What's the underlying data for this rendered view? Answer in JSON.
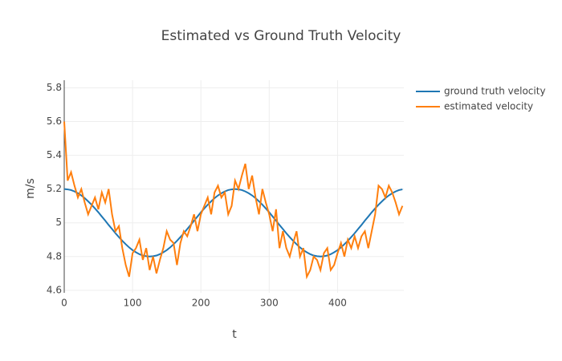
{
  "chart_data": {
    "type": "line",
    "title": "Estimated vs Ground Truth Velocity",
    "x_label": "t",
    "y_label": "m/s",
    "x": [
      0,
      5,
      10,
      15,
      20,
      25,
      30,
      35,
      40,
      45,
      50,
      55,
      60,
      65,
      70,
      75,
      80,
      85,
      90,
      95,
      100,
      105,
      110,
      115,
      120,
      125,
      130,
      135,
      140,
      145,
      150,
      155,
      160,
      165,
      170,
      175,
      180,
      185,
      190,
      195,
      200,
      205,
      210,
      215,
      220,
      225,
      230,
      235,
      240,
      245,
      250,
      255,
      260,
      265,
      270,
      275,
      280,
      285,
      290,
      295,
      300,
      305,
      310,
      315,
      320,
      325,
      330,
      335,
      340,
      345,
      350,
      355,
      360,
      365,
      370,
      375,
      380,
      385,
      390,
      395,
      400,
      405,
      410,
      415,
      420,
      425,
      430,
      435,
      440,
      445,
      450,
      455,
      460,
      465,
      470,
      475,
      480,
      485,
      490,
      495
    ],
    "series": [
      {
        "name": "ground truth velocity",
        "color": "#1f77b4",
        "values": [
          5.2,
          5.198,
          5.194,
          5.186,
          5.175,
          5.162,
          5.146,
          5.127,
          5.107,
          5.085,
          5.062,
          5.037,
          5.013,
          4.987,
          4.963,
          4.938,
          4.915,
          4.893,
          4.873,
          4.854,
          4.838,
          4.825,
          4.814,
          4.806,
          4.802,
          4.8,
          4.802,
          4.806,
          4.814,
          4.825,
          4.838,
          4.854,
          4.873,
          4.893,
          4.915,
          4.938,
          4.963,
          4.987,
          5.013,
          5.037,
          5.062,
          5.085,
          5.107,
          5.127,
          5.146,
          5.162,
          5.175,
          5.186,
          5.194,
          5.198,
          5.2,
          5.198,
          5.194,
          5.186,
          5.175,
          5.162,
          5.146,
          5.127,
          5.107,
          5.085,
          5.062,
          5.037,
          5.013,
          4.987,
          4.963,
          4.938,
          4.915,
          4.893,
          4.873,
          4.854,
          4.838,
          4.825,
          4.814,
          4.806,
          4.802,
          4.8,
          4.802,
          4.806,
          4.814,
          4.825,
          4.838,
          4.854,
          4.873,
          4.893,
          4.915,
          4.938,
          4.963,
          4.987,
          5.013,
          5.037,
          5.062,
          5.085,
          5.107,
          5.127,
          5.146,
          5.162,
          5.175,
          5.186,
          5.194,
          5.198
        ]
      },
      {
        "name": "estimated velocity",
        "color": "#ff7f0e",
        "values": [
          5.6,
          5.25,
          5.3,
          5.22,
          5.15,
          5.2,
          5.12,
          5.05,
          5.1,
          5.15,
          5.08,
          5.18,
          5.12,
          5.2,
          5.05,
          4.95,
          4.98,
          4.85,
          4.75,
          4.68,
          4.82,
          4.85,
          4.9,
          4.78,
          4.85,
          4.72,
          4.8,
          4.7,
          4.78,
          4.85,
          4.95,
          4.9,
          4.88,
          4.75,
          4.88,
          4.95,
          4.92,
          4.98,
          5.05,
          4.95,
          5.05,
          5.1,
          5.15,
          5.05,
          5.18,
          5.22,
          5.15,
          5.18,
          5.05,
          5.1,
          5.25,
          5.2,
          5.28,
          5.35,
          5.2,
          5.28,
          5.15,
          5.05,
          5.2,
          5.12,
          5.05,
          4.95,
          5.08,
          4.85,
          4.95,
          4.85,
          4.8,
          4.88,
          4.95,
          4.8,
          4.85,
          4.68,
          4.72,
          4.8,
          4.78,
          4.72,
          4.82,
          4.85,
          4.72,
          4.75,
          4.82,
          4.88,
          4.8,
          4.9,
          4.85,
          4.92,
          4.85,
          4.92,
          4.95,
          4.85,
          4.95,
          5.05,
          5.22,
          5.2,
          5.15,
          5.22,
          5.18,
          5.12,
          5.05,
          5.1
        ]
      }
    ],
    "xlim": [
      0,
      497
    ],
    "ylim": [
      4.585,
      5.845
    ],
    "xticks": [
      0,
      100,
      200,
      300,
      400
    ],
    "yticks": [
      4.6,
      4.8,
      5,
      5.2,
      5.4,
      5.6,
      5.8
    ],
    "grid": true
  }
}
